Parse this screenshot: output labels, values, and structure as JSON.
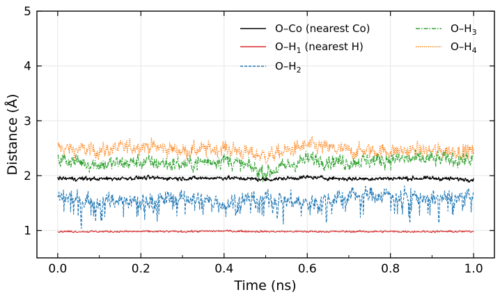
{
  "chart_data": {
    "type": "line",
    "title": "",
    "xlabel": "Time (ns)",
    "ylabel": "Distance (Å)",
    "xlim": [
      -0.05,
      1.05
    ],
    "ylim": [
      0.5,
      5.0
    ],
    "xticks": [
      0.0,
      0.2,
      0.4,
      0.6,
      0.8,
      1.0
    ],
    "xtick_labels": [
      "0.0",
      "0.2",
      "0.4",
      "0.6",
      "0.8",
      "1.0"
    ],
    "yticks": [
      1,
      2,
      3,
      4,
      5
    ],
    "ytick_labels": [
      "1",
      "2",
      "3",
      "4",
      "5"
    ],
    "grid": true,
    "legend_position": "top-right",
    "n_points": 1000,
    "x": [
      0.0,
      0.1,
      0.2,
      0.3,
      0.4,
      0.5,
      0.6,
      0.7,
      0.8,
      0.9,
      1.0
    ],
    "series": [
      {
        "key": "oco",
        "name": "O–Co (nearest Co)",
        "legend_main": "O–Co (nearest Co)",
        "legend_sub": "",
        "legend_tail": "",
        "color": "#000000",
        "dash": "solid",
        "mean": 1.95,
        "noise": 0.04,
        "range": [
          1.85,
          2.08
        ],
        "values": [
          1.95,
          1.94,
          1.96,
          1.95,
          1.96,
          1.93,
          1.97,
          1.94,
          1.95,
          1.95,
          1.93
        ]
      },
      {
        "key": "oh1",
        "name": "O–H1 (nearest H)",
        "legend_main": "O–H",
        "legend_sub": "1",
        "legend_tail": " (nearest H)",
        "color": "#d62728",
        "dash": "solid",
        "mean": 0.98,
        "noise": 0.02,
        "range": [
          0.93,
          1.05
        ],
        "values": [
          0.98,
          0.98,
          0.98,
          0.98,
          0.99,
          0.98,
          0.98,
          0.98,
          0.98,
          0.98,
          0.98
        ]
      },
      {
        "key": "oh2",
        "name": "O–H2",
        "legend_main": "O–H",
        "legend_sub": "2",
        "legend_tail": "",
        "color": "#1f77b4",
        "dash": "dashed",
        "mean": 1.6,
        "noise": 0.18,
        "range": [
          0.95,
          2.0
        ],
        "values": [
          1.6,
          1.55,
          1.55,
          1.6,
          1.5,
          1.6,
          1.5,
          1.65,
          1.65,
          1.6,
          1.6
        ]
      },
      {
        "key": "oh3",
        "name": "O–H3",
        "legend_main": "O–H",
        "legend_sub": "3",
        "legend_tail": "",
        "color": "#2ca02c",
        "dash": "dashdot",
        "mean": 2.25,
        "noise": 0.16,
        "range": [
          1.75,
          2.75
        ],
        "values": [
          2.3,
          2.2,
          2.25,
          2.2,
          2.3,
          2.05,
          2.3,
          2.25,
          2.3,
          2.3,
          2.3
        ]
      },
      {
        "key": "oh4",
        "name": "O–H4",
        "legend_main": "O–H",
        "legend_sub": "4",
        "legend_tail": "",
        "color": "#ff7f0e",
        "dash": "dotted",
        "mean": 2.5,
        "noise": 0.16,
        "range": [
          2.0,
          2.95
        ],
        "values": [
          2.5,
          2.45,
          2.55,
          2.45,
          2.5,
          2.35,
          2.55,
          2.45,
          2.45,
          2.45,
          2.45
        ]
      }
    ]
  }
}
